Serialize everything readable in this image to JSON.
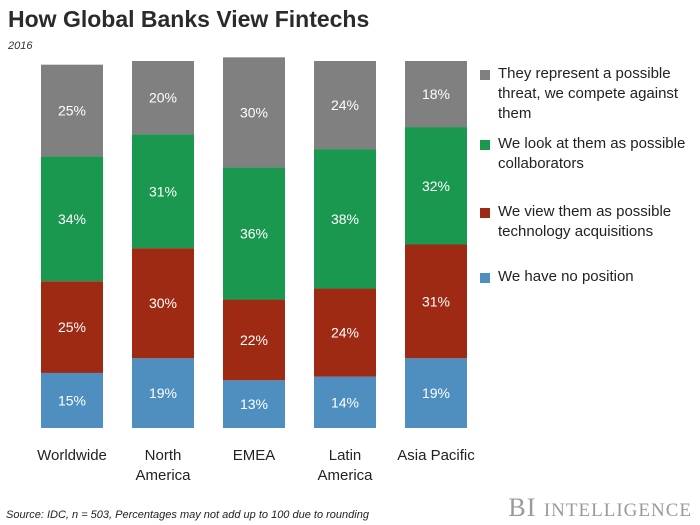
{
  "title": "How Global Banks View Fintechs",
  "subtitle": "2016",
  "source": "Source: IDC, n = 503, Percentages may not add up to 100 due to rounding",
  "brand": {
    "first": "BI",
    "second": "Intelligence"
  },
  "colors": {
    "threat": "#808080",
    "collaborators": "#1a9850",
    "acquisitions": "#9e2a14",
    "no_position": "#4f8fbf"
  },
  "chart_data": {
    "type": "bar",
    "stacked": true,
    "title": "How Global Banks View Fintechs",
    "subtitle": "2016",
    "categories": [
      "Worldwide",
      "North America",
      "EMEA",
      "Latin America",
      "Asia Pacific"
    ],
    "category_lines": [
      [
        "Worldwide"
      ],
      [
        "North",
        "America"
      ],
      [
        "EMEA"
      ],
      [
        "Latin",
        "America"
      ],
      [
        "Asia Pacific"
      ]
    ],
    "series": [
      {
        "name": "We have no position",
        "key": "no_position",
        "values": [
          15,
          19,
          13,
          14,
          19
        ]
      },
      {
        "name": "We view them as possible technology acquisitions",
        "key": "acquisitions",
        "values": [
          25,
          30,
          22,
          24,
          31
        ]
      },
      {
        "name": "We look at them as possible collaborators",
        "key": "collaborators",
        "values": [
          34,
          31,
          36,
          38,
          32
        ]
      },
      {
        "name": "They represent a possible threat, we compete against them",
        "key": "threat",
        "values": [
          25,
          20,
          30,
          24,
          18
        ]
      }
    ],
    "value_suffix": "%",
    "ylim": [
      0,
      100
    ],
    "legend_position": "right",
    "grid": false
  },
  "legend": [
    {
      "key": "threat",
      "label": "They represent a possible threat, we compete against them"
    },
    {
      "key": "collaborators",
      "label": "We look at them as possible collaborators"
    },
    {
      "key": "acquisitions",
      "label": "We view them as possible technology acquisitions"
    },
    {
      "key": "no_position",
      "label": "We have no position"
    }
  ]
}
